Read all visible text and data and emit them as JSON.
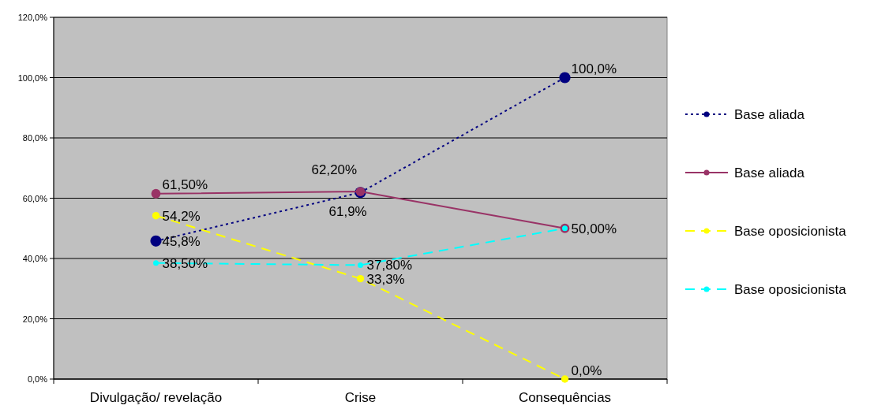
{
  "chart_data": {
    "type": "line",
    "categories": [
      "Divulgação/ revelação",
      "Crise",
      "Consequências"
    ],
    "ylim": [
      0,
      120
    ],
    "yticks": [
      {
        "value": 0,
        "label": "0,0%"
      },
      {
        "value": 20,
        "label": "20,0%"
      },
      {
        "value": 40,
        "label": "40,0%"
      },
      {
        "value": 60,
        "label": "60,0%"
      },
      {
        "value": 80,
        "label": "80,0%"
      },
      {
        "value": 100,
        "label": "100,0%"
      },
      {
        "value": 120,
        "label": "120,0%"
      }
    ],
    "grid": "y",
    "legend": "right",
    "marker": "circle",
    "series": [
      {
        "name": "Base aliada",
        "color": "#000080",
        "line_style": "dotted",
        "values": [
          45.8,
          61.9,
          100
        ],
        "value_labels": [
          "45,8%",
          "61,9%",
          "100,0%"
        ]
      },
      {
        "name": "Base aliada",
        "color": "#993366",
        "line_style": "solid",
        "values": [
          61.5,
          62.2,
          50
        ],
        "value_labels": [
          "61,50%",
          "62,20%",
          null
        ]
      },
      {
        "name": "Base oposicionista",
        "color": "#ffff00",
        "line_style": "dashed",
        "values": [
          54.2,
          33.3,
          0
        ],
        "value_labels": [
          "54,2%",
          "33,3%",
          "0,0%"
        ]
      },
      {
        "name": "Base oposicionista",
        "color": "#00ffff",
        "line_style": "dashed",
        "values": [
          38.5,
          37.8,
          50
        ],
        "value_labels": [
          "38,50%",
          "37,80%",
          "50,00%"
        ]
      }
    ]
  }
}
